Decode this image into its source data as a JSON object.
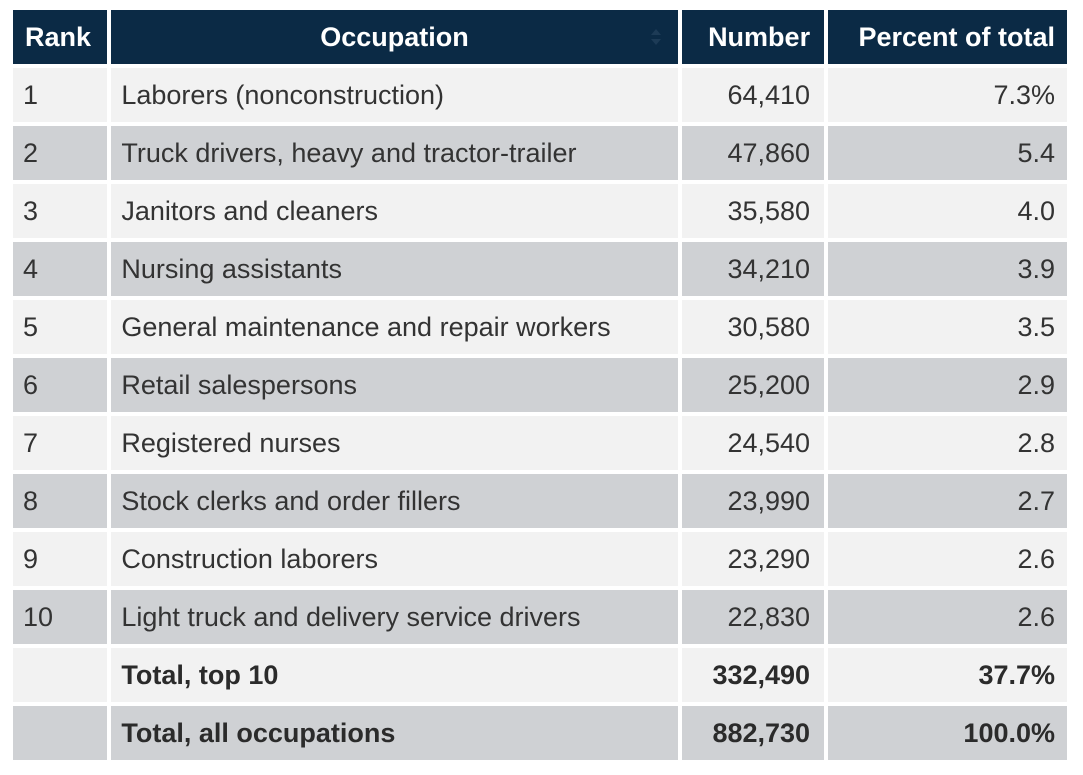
{
  "table": {
    "headers": {
      "rank": "Rank",
      "occupation": "Occupation",
      "number": "Number",
      "percent": "Percent of total"
    },
    "rows": [
      {
        "rank": "1",
        "occupation": "Laborers (nonconstruction)",
        "number": "64,410",
        "percent": "7.3%"
      },
      {
        "rank": "2",
        "occupation": "Truck drivers, heavy and tractor-trailer",
        "number": "47,860",
        "percent": "5.4"
      },
      {
        "rank": "3",
        "occupation": "Janitors and cleaners",
        "number": "35,580",
        "percent": "4.0"
      },
      {
        "rank": "4",
        "occupation": "Nursing assistants",
        "number": "34,210",
        "percent": "3.9"
      },
      {
        "rank": "5",
        "occupation": "General maintenance and repair workers",
        "number": "30,580",
        "percent": "3.5"
      },
      {
        "rank": "6",
        "occupation": "Retail salespersons",
        "number": "25,200",
        "percent": "2.9"
      },
      {
        "rank": "7",
        "occupation": "Registered nurses",
        "number": "24,540",
        "percent": "2.8"
      },
      {
        "rank": "8",
        "occupation": "Stock clerks and order fillers",
        "number": "23,990",
        "percent": "2.7"
      },
      {
        "rank": "9",
        "occupation": "Construction laborers",
        "number": "23,290",
        "percent": "2.6"
      },
      {
        "rank": "10",
        "occupation": "Light truck and delivery service drivers",
        "number": "22,830",
        "percent": "2.6"
      }
    ],
    "totals": [
      {
        "rank": "",
        "occupation": "Total, top 10",
        "number": "332,490",
        "percent": "37.7%"
      },
      {
        "rank": "",
        "occupation": "Total, all occupations",
        "number": "882,730",
        "percent": "100.0%"
      }
    ]
  },
  "colors": {
    "header_bg": "#0b2a45",
    "row_light": "#f2f2f2",
    "row_dark": "#cfd1d4"
  },
  "icons": {
    "occupation_sort": "sort-icon"
  }
}
